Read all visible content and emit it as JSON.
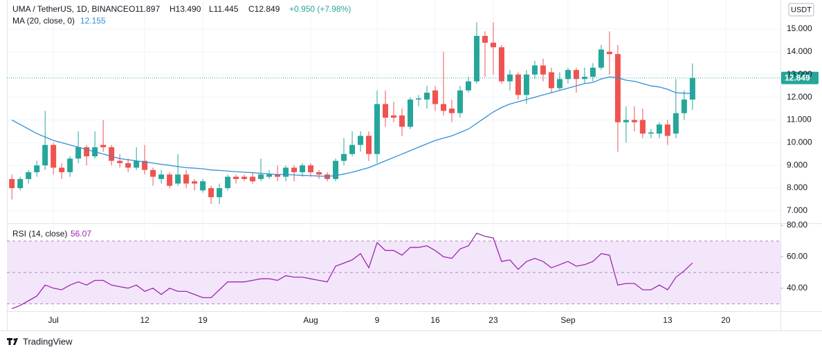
{
  "chart_data": {
    "type": "candlestick",
    "header": [
      "UMA / TetherUS, 1D, BINANCE",
      "O11.897",
      "H13.490",
      "L11.445",
      "C12.849",
      "+0.950 (+7.98%)"
    ],
    "ma_label": "MA (20, close, 0)",
    "rsi_label": "RSI (14, close)",
    "currency": "USDT",
    "brand": "TradingView",
    "colors": {
      "up": "#26a69a",
      "down": "#ef5350",
      "ma": "#2f8fd8",
      "rsi": "#9c27b0",
      "rsi_band": "#f3e6fa"
    },
    "xlim": [
      -0.6,
      92.6
    ],
    "xticks": [
      {
        "value": 5,
        "label": "Jul"
      },
      {
        "value": 16,
        "label": "12"
      },
      {
        "value": 23,
        "label": "19"
      },
      {
        "value": 36,
        "label": "Aug"
      },
      {
        "value": 44,
        "label": "9"
      },
      {
        "value": 51,
        "label": "16"
      },
      {
        "value": 58,
        "label": "23"
      },
      {
        "value": 67,
        "label": "Sep"
      },
      {
        "value": 79,
        "label": "13"
      },
      {
        "value": 86,
        "label": "20"
      }
    ],
    "ylim": [
      6.45,
      16.28
    ],
    "yticks": [
      {
        "value": 7,
        "label": "7.000"
      },
      {
        "value": 8,
        "label": "8.000"
      },
      {
        "value": 9,
        "label": "9.000"
      },
      {
        "value": 10,
        "label": "10.000"
      },
      {
        "value": 11,
        "label": "11.000"
      },
      {
        "value": 12,
        "label": "12.000"
      },
      {
        "value": 13,
        "label": "13.000"
      },
      {
        "value": 14,
        "label": "14.000"
      },
      {
        "value": 15,
        "label": "15.000"
      }
    ],
    "open": [
      8.4,
      8.0,
      8.4,
      8.7,
      9.0,
      9.9,
      8.9,
      8.7,
      9.3,
      9.8,
      9.4,
      9.9,
      9.8,
      9.2,
      9.1,
      8.9,
      9.2,
      8.8,
      8.4,
      8.6,
      8.2,
      8.6,
      8.3,
      7.9,
      8.0,
      7.6,
      8.0,
      8.5,
      8.5,
      8.5,
      8.4,
      8.5,
      8.6,
      8.5,
      8.9,
      8.7,
      9.0,
      8.7,
      8.6,
      8.4,
      9.2,
      9.5,
      9.9,
      10.3,
      9.5,
      11.7,
      11.2,
      11.2,
      10.7,
      11.9,
      11.9,
      12.3,
      11.7,
      11.5,
      11.3,
      12.3,
      12.7,
      14.7,
      14.4,
      14.2,
      12.7,
      13.0,
      12.1,
      13.0,
      13.4,
      13.1,
      12.4,
      12.8,
      13.2,
      12.8,
      12.9,
      13.3,
      14.0,
      13.9,
      10.9,
      11.0,
      11.0,
      10.4,
      10.4,
      10.8,
      10.4,
      11.3,
      11.897
    ],
    "high": [
      8.6,
      8.5,
      8.8,
      9.2,
      11.4,
      10.0,
      9.1,
      9.4,
      10.5,
      9.9,
      10.5,
      11.0,
      9.9,
      9.5,
      9.3,
      9.8,
      9.9,
      8.9,
      8.8,
      8.7,
      9.5,
      8.8,
      8.4,
      8.4,
      8.1,
      8.2,
      8.6,
      8.6,
      8.6,
      8.7,
      9.3,
      8.8,
      9.0,
      9.0,
      9.0,
      9.1,
      9.1,
      8.8,
      8.7,
      9.3,
      10.2,
      10.5,
      10.5,
      10.5,
      12.3,
      12.3,
      11.8,
      11.5,
      12.0,
      12.1,
      12.5,
      12.5,
      14.0,
      11.9,
      12.5,
      12.9,
      15.3,
      14.9,
      15.3,
      14.3,
      13.2,
      13.1,
      13.2,
      13.6,
      13.7,
      13.3,
      13.1,
      13.3,
      13.3,
      13.3,
      13.5,
      14.3,
      14.9,
      14.3,
      11.6,
      11.6,
      11.5,
      10.6,
      10.9,
      11.0,
      12.8,
      12.3,
      13.49
    ],
    "low": [
      7.5,
      7.9,
      8.2,
      8.5,
      8.8,
      8.6,
      8.4,
      8.5,
      9.1,
      9.0,
      9.3,
      9.6,
      9.0,
      8.9,
      8.7,
      8.8,
      8.6,
      8.1,
      8.2,
      8.0,
      8.1,
      8.0,
      7.9,
      7.8,
      7.3,
      7.3,
      7.9,
      8.2,
      8.3,
      8.2,
      8.3,
      8.4,
      8.3,
      8.3,
      8.3,
      8.5,
      8.5,
      8.4,
      8.3,
      8.3,
      9.0,
      9.4,
      9.6,
      9.2,
      9.1,
      10.7,
      10.9,
      10.3,
      10.6,
      11.6,
      11.5,
      11.4,
      11.2,
      10.9,
      11.1,
      12.2,
      12.6,
      12.9,
      13.0,
      12.6,
      12.3,
      11.9,
      11.7,
      12.8,
      12.7,
      12.2,
      12.3,
      12.6,
      12.2,
      12.6,
      12.7,
      13.2,
      13.0,
      9.6,
      10.0,
      10.5,
      10.2,
      10.2,
      10.2,
      9.9,
      10.2,
      11.0,
      11.445
    ],
    "close": [
      8.0,
      8.4,
      8.7,
      9.0,
      9.9,
      8.9,
      8.7,
      9.3,
      9.8,
      9.4,
      9.8,
      9.8,
      9.2,
      9.1,
      8.9,
      9.2,
      8.8,
      8.5,
      8.6,
      8.1,
      8.6,
      8.2,
      8.2,
      8.3,
      7.6,
      8.0,
      8.5,
      8.4,
      8.4,
      8.3,
      8.6,
      8.6,
      8.5,
      8.9,
      8.7,
      9.0,
      8.7,
      8.6,
      8.4,
      9.2,
      9.5,
      9.9,
      10.3,
      9.5,
      11.7,
      11.1,
      11.1,
      10.7,
      11.9,
      11.95,
      12.2,
      11.7,
      11.4,
      11.3,
      12.3,
      12.7,
      14.7,
      14.4,
      14.2,
      12.7,
      13.0,
      12.1,
      13.0,
      13.4,
      13.0,
      12.4,
      12.8,
      13.2,
      12.8,
      12.9,
      13.3,
      14.1,
      13.9,
      10.9,
      11.0,
      10.9,
      10.4,
      10.45,
      10.8,
      10.3,
      11.3,
      11.9,
      12.849
    ],
    "ma": [
      11.0,
      10.8,
      10.6,
      10.4,
      10.25,
      10.1,
      10.0,
      9.9,
      9.8,
      9.7,
      9.6,
      9.5,
      9.4,
      9.3,
      9.25,
      9.2,
      9.15,
      9.1,
      9.05,
      9.0,
      8.95,
      8.9,
      8.88,
      8.85,
      8.8,
      8.78,
      8.75,
      8.72,
      8.7,
      8.68,
      8.65,
      8.62,
      8.6,
      8.6,
      8.58,
      8.56,
      8.55,
      8.53,
      8.52,
      8.55,
      8.62,
      8.7,
      8.8,
      8.9,
      9.05,
      9.2,
      9.35,
      9.5,
      9.65,
      9.8,
      9.95,
      10.1,
      10.2,
      10.3,
      10.45,
      10.6,
      10.85,
      11.1,
      11.35,
      11.55,
      11.7,
      11.8,
      11.9,
      12.0,
      12.1,
      12.2,
      12.3,
      12.4,
      12.5,
      12.6,
      12.65,
      12.8,
      12.9,
      12.85,
      12.75,
      12.7,
      12.6,
      12.5,
      12.45,
      12.35,
      12.2,
      12.18,
      12.155
    ],
    "rsi_ylim": [
      25.4,
      81.3
    ],
    "rsi_ticks": [
      {
        "value": 40,
        "label": "40.00"
      },
      {
        "value": 60,
        "label": "60.00"
      },
      {
        "value": 80,
        "label": "80.00"
      }
    ],
    "rsi_band": [
      30,
      70
    ],
    "rsi_mid": 50,
    "rsi": [
      27,
      29,
      32,
      35,
      42,
      40,
      39,
      42,
      44,
      42,
      45,
      45,
      42,
      41,
      40,
      42,
      38,
      40,
      36,
      40,
      38,
      38,
      36,
      34,
      34,
      39,
      44,
      44,
      44,
      45,
      46,
      46,
      45,
      48,
      47,
      47,
      46,
      45,
      44,
      54,
      56,
      58,
      62,
      53,
      69,
      64,
      64,
      61,
      66,
      66,
      67,
      64,
      60,
      59,
      65,
      67,
      75,
      73,
      72,
      57,
      58,
      52,
      57,
      59,
      57,
      53,
      55,
      57,
      54,
      55,
      57,
      62,
      61,
      42,
      43,
      43,
      39,
      39,
      42,
      39,
      47,
      51,
      56.07
    ]
  }
}
